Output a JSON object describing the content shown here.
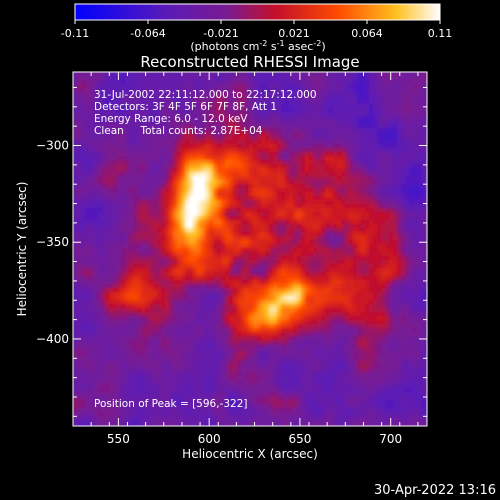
{
  "chart_data": {
    "type": "heatmap",
    "title": "Reconstructed RHESSI Image",
    "xlabel": "Heliocentric X (arcsec)",
    "ylabel": "Heliocentric Y (arcsec)",
    "xlim": [
      525,
      720
    ],
    "ylim": [
      -445,
      -262
    ],
    "xticks": [
      550,
      600,
      650,
      700
    ],
    "yticks": [
      -300,
      -350,
      -400
    ],
    "colorbar": {
      "colormap": "blue-purple-red-yellow-white",
      "range": [
        -0.11,
        0.11
      ],
      "ticks": [
        "-0.11",
        "-0.064",
        "-0.021",
        "0.021",
        "0.064",
        "0.11"
      ],
      "unit_label": "(photons cm",
      "unit_exp1": "-2",
      "unit_mid": " s",
      "unit_exp2": "-1",
      "unit_mid2": " asec",
      "unit_exp3": "-2",
      "unit_end": ")"
    },
    "annotations": [
      "31-Jul-2002 22:11:12.000 to 22:17:12.000",
      "Detectors: 3F 4F 5F 6F 7F 8F, Att 1",
      "Energy Range: 6.0 - 12.0 keV",
      "Clean     Total counts: 2.87E+04"
    ],
    "peak_label": "Position of Peak = [596,-322]",
    "peak": [
      596,
      -322
    ],
    "sources": [
      {
        "x": 596,
        "y": -322,
        "intensity": 0.11,
        "sx": 9,
        "sy": 13
      },
      {
        "x": 585,
        "y": -345,
        "intensity": 0.07,
        "sx": 10,
        "sy": 14
      },
      {
        "x": 650,
        "y": -378,
        "intensity": 0.09,
        "sx": 18,
        "sy": 9
      },
      {
        "x": 630,
        "y": -390,
        "intensity": 0.06,
        "sx": 12,
        "sy": 8
      },
      {
        "x": 620,
        "y": -310,
        "intensity": 0.045,
        "sx": 18,
        "sy": 12
      },
      {
        "x": 660,
        "y": -330,
        "intensity": 0.045,
        "sx": 16,
        "sy": 16
      },
      {
        "x": 565,
        "y": -380,
        "intensity": 0.045,
        "sx": 14,
        "sy": 14
      },
      {
        "x": 690,
        "y": -370,
        "intensity": 0.04,
        "sx": 12,
        "sy": 18
      },
      {
        "x": 610,
        "y": -345,
        "intensity": 0.03,
        "sx": 22,
        "sy": 16
      }
    ]
  },
  "timestamp": "30-Apr-2022 13:16"
}
